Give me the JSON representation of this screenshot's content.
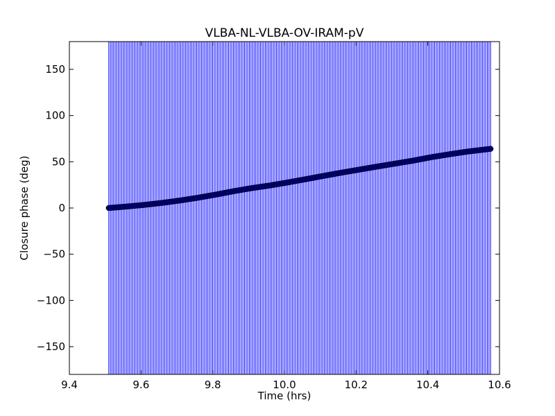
{
  "chart_data": {
    "type": "scatter",
    "title": "VLBA-NL-VLBA-OV-IRAM-pV",
    "xlabel": "Time (hrs)",
    "ylabel": "Closure phase (deg)",
    "xlim": [
      9.4,
      10.6
    ],
    "ylim": [
      -180,
      180
    ],
    "xticks": [
      "9.4",
      "9.6",
      "9.8",
      "10.0",
      "10.2",
      "10.4",
      "10.6"
    ],
    "yticks": [
      "150",
      "100",
      "50",
      "0",
      "−50",
      "−100",
      "−150"
    ],
    "grid": false,
    "error_bars": {
      "lower": -180,
      "upper": 180,
      "color": "#0000ff"
    },
    "marker_color": "#00007f",
    "series": [
      {
        "x_range": [
          9.51,
          10.575
        ],
        "points": [
          [
            9.51,
            0.0
          ],
          [
            9.56,
            1.6
          ],
          [
            9.61,
            3.4
          ],
          [
            9.66,
            5.6
          ],
          [
            9.71,
            8.2
          ],
          [
            9.76,
            11.2
          ],
          [
            9.81,
            14.6
          ],
          [
            9.86,
            18.3
          ],
          [
            9.91,
            21.6
          ],
          [
            9.96,
            24.4
          ],
          [
            10.01,
            27.7
          ],
          [
            10.06,
            31.2
          ],
          [
            10.11,
            34.8
          ],
          [
            10.16,
            38.3
          ],
          [
            10.21,
            41.6
          ],
          [
            10.26,
            44.9
          ],
          [
            10.31,
            48.1
          ],
          [
            10.36,
            51.3
          ],
          [
            10.41,
            55.0
          ],
          [
            10.46,
            58.1
          ],
          [
            10.51,
            61.0
          ],
          [
            10.575,
            64.0
          ]
        ]
      }
    ]
  }
}
